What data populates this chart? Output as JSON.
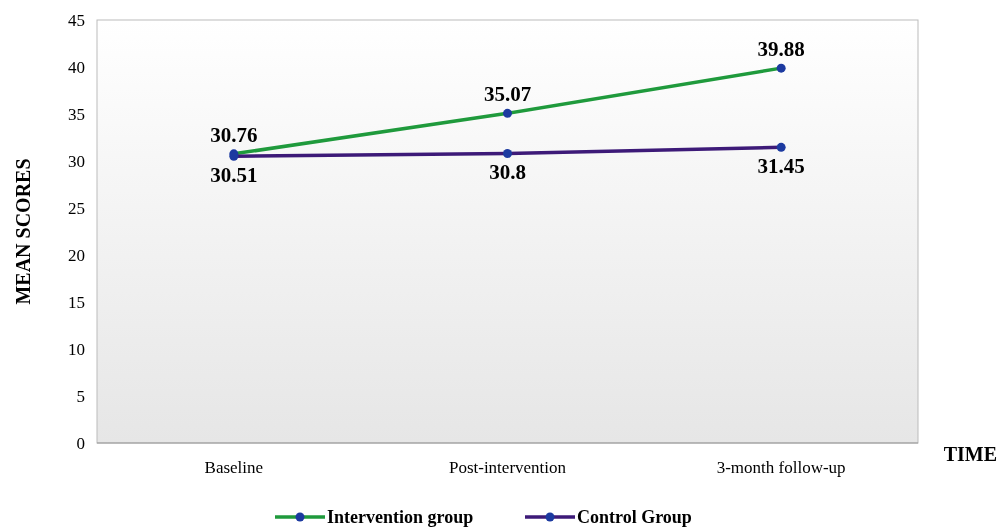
{
  "chart_data": {
    "type": "line",
    "xlabel": "TIME",
    "ylabel": "MEAN SCORES",
    "categories": [
      "Baseline",
      "Post-intervention",
      "3-month follow-up"
    ],
    "series": [
      {
        "name": "Intervention group",
        "color": "#1f9a3c",
        "values": [
          30.76,
          35.07,
          39.88
        ]
      },
      {
        "name": "Control Group",
        "color": "#3d1a78",
        "values": [
          30.51,
          30.8,
          31.45
        ]
      }
    ],
    "ylim": [
      0,
      45
    ],
    "yticks": [
      0,
      5,
      10,
      15,
      20,
      25,
      30,
      35,
      40,
      45
    ],
    "grid": false,
    "legend": "bottom",
    "marker": "circle",
    "line_style": "solid",
    "data_labels": true
  }
}
